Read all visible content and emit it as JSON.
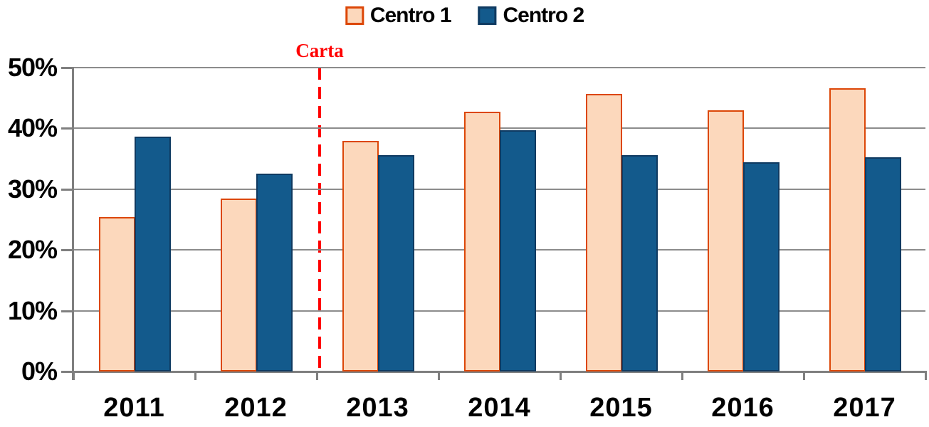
{
  "chart_data": {
    "type": "bar",
    "title": "",
    "xlabel": "",
    "ylabel": "",
    "categories": [
      "2011",
      "2012",
      "2013",
      "2014",
      "2015",
      "2016",
      "2017"
    ],
    "series": [
      {
        "name": "Centro 1",
        "fill_color": "#FCD8BC",
        "border_color": "#DC4708",
        "values": [
          25.4,
          28.4,
          37.9,
          42.7,
          45.6,
          42.9,
          46.6
        ]
      },
      {
        "name": "Centro 2",
        "fill_color": "#135A8C",
        "border_color": "#0F3A61",
        "values": [
          38.6,
          32.5,
          35.5,
          39.7,
          35.5,
          34.4,
          35.2
        ]
      }
    ],
    "ylim": [
      0,
      50
    ],
    "yticks": [
      "0%",
      "10%",
      "20%",
      "30%",
      "40%",
      "50%"
    ],
    "grid": true,
    "legend_position": "top-center",
    "annotation": {
      "label": "Carta",
      "type": "dashed-vertical-line",
      "color": "#FF0000",
      "between_categories": [
        "2012",
        "2013"
      ]
    }
  },
  "colors": {
    "gridline": "#8C8C8C",
    "axis": "#7F7F7F",
    "text": "#000000",
    "background": "#FFFFFF"
  }
}
